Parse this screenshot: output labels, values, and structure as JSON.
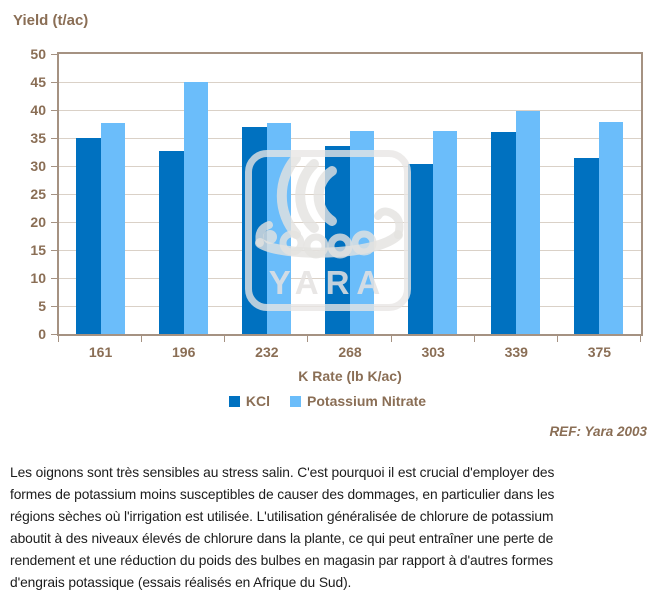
{
  "chart_data": {
    "type": "bar",
    "title": "Yield (t/ac)",
    "categories": [
      "161",
      "196",
      "232",
      "268",
      "303",
      "339",
      "375"
    ],
    "series": [
      {
        "name": "KCl",
        "color": "#0071c0",
        "values": [
          35.0,
          32.6,
          36.9,
          33.5,
          30.4,
          36.0,
          31.5
        ]
      },
      {
        "name": "Potassium Nitrate",
        "color": "#6bbdfa",
        "values": [
          37.6,
          45.0,
          37.6,
          36.3,
          36.3,
          39.8,
          37.8
        ]
      }
    ],
    "xlabel": "K Rate (lb K/ac)",
    "ylabel": "Yield (t/ac)",
    "ylim": [
      0,
      50
    ],
    "ytick_step": 5,
    "grid": true,
    "legend_position": "bottom"
  },
  "reference": "REF: Yara 2003",
  "watermark": {
    "text": "YARA"
  },
  "paragraph": {
    "lines": [
      "Les oignons sont très sensibles au stress salin. C'est pourquoi il est crucial d'employer des",
      "formes de potassium moins susceptibles de causer des dommages, en particulier dans les",
      "régions sèches où l'irrigation est utilisée. L'utilisation généralisée de chlorure de potassium",
      "aboutit à des niveaux élevés de chlorure dans la plante, ce qui peut entraîner une perte de",
      "rendement et une réduction du poids des bulbes en magasin par rapport à d'autres formes",
      "d'engrais potassique (essais réalisés en Afrique du Sud)."
    ]
  },
  "colors": {
    "axis_text": "#8a6e55",
    "frame": "#a59282",
    "gridline": "#dad1c7",
    "body_text": "#1c1c1c",
    "watermark": "#e6e4e2"
  }
}
